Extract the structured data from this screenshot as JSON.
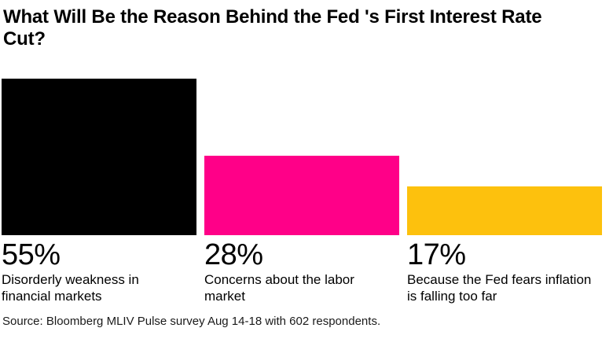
{
  "page": {
    "title": "What Will Be the Reason Behind the Fed 's First Interest Rate Cut?",
    "source": "Source: Bloomberg MLIV Pulse survey Aug 14-18 with 602 respondents."
  },
  "chart_data": {
    "type": "bar",
    "title": "What Will Be the Reason Behind the Fed 's First Interest Rate Cut?",
    "categories": [
      "Disorderly weakness in financial markets",
      "Concerns about the labor market",
      "Because the Fed fears inflation is falling too far"
    ],
    "values": [
      55,
      28,
      17
    ],
    "value_labels": [
      "55%",
      "28%",
      "17%"
    ],
    "unit": "%",
    "colors": [
      "#000000",
      "#FF0088",
      "#FDC10D"
    ],
    "ylim": [
      0,
      55
    ],
    "grid": false,
    "legend": "none",
    "orientation": "vertical",
    "value_label_position": "below-bar",
    "source": "Source: Bloomberg MLIV Pulse survey Aug 14-18 with 602 respondents."
  }
}
